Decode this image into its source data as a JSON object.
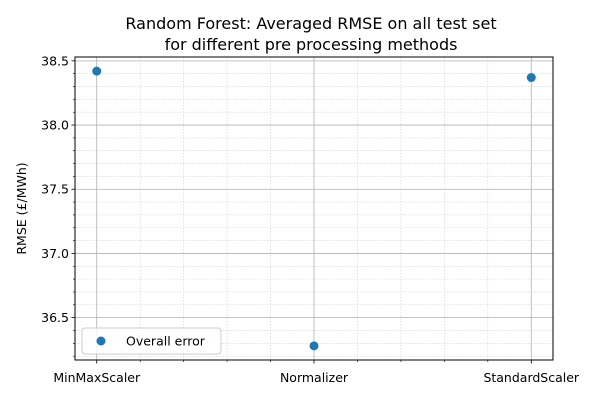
{
  "chart_data": {
    "type": "scatter",
    "title": [
      "Random Forest: Averaged RMSE on all test set",
      "for different pre processing methods"
    ],
    "xlabel": "",
    "ylabel": "RMSE (£/MWh)",
    "categories": [
      "MinMaxScaler",
      "Normalizer",
      "StandardScaler"
    ],
    "series": [
      {
        "name": "Overall error",
        "values": [
          38.42,
          36.28,
          38.37
        ],
        "color": "#1f77b4"
      }
    ],
    "ylim": [
      36.17,
      38.53
    ],
    "yticks": [
      36.5,
      37.0,
      37.5,
      38.0,
      38.5
    ],
    "ytick_labels": [
      "36.5",
      "37.0",
      "37.5",
      "38.0",
      "38.5"
    ],
    "grid": {
      "major": true,
      "minor": true
    },
    "legend_position": "lower-left"
  }
}
